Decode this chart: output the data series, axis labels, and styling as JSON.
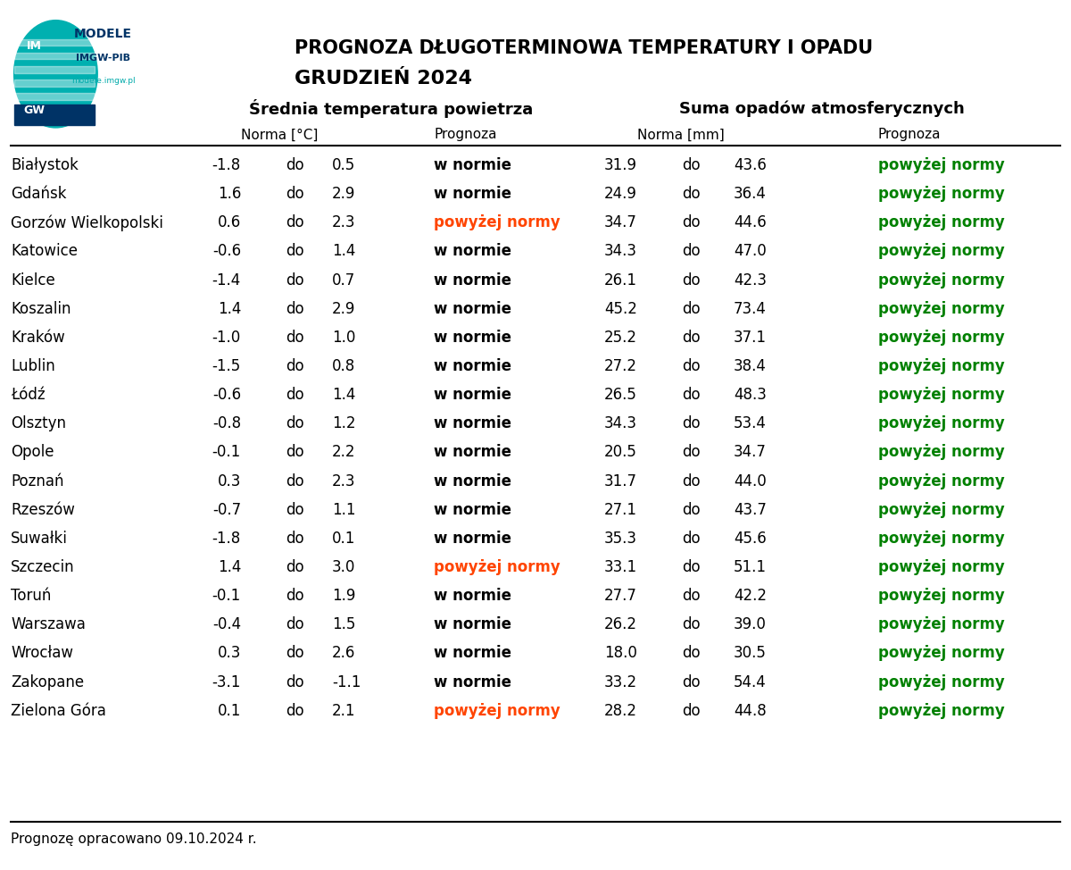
{
  "title1": "PROGNOZA DŁUGOTERMINOWA TEMPERATURY I OPADU",
  "title2": "GRUDZIEŃ 2024",
  "header1": "Średnia temperatura powietrza",
  "header2": "Suma opadów atmosferycznych",
  "subheader1": "Norma [°C]",
  "subheader2": "Prognoza",
  "subheader3": "Norma [mm]",
  "subheader4": "Prognoza",
  "footer": "Prognozę opracowano 09.10.2024 r.",
  "cities": [
    "Białystok",
    "Gdańsk",
    "Gorzów Wielkopolski",
    "Katowice",
    "Kielce",
    "Koszalin",
    "Kraków",
    "Lublin",
    "Łódź",
    "Olsztyn",
    "Opole",
    "Poznań",
    "Rzeszów",
    "Suwаłki",
    "Szczecin",
    "Toruń",
    "Warszawa",
    "Wrocław",
    "Zakopane",
    "Zielona Góra"
  ],
  "temp_norm_low": [
    -1.8,
    1.6,
    0.6,
    -0.6,
    -1.4,
    1.4,
    -1.0,
    -1.5,
    -0.6,
    -0.8,
    -0.1,
    0.3,
    -0.7,
    -1.8,
    1.4,
    -0.1,
    -0.4,
    0.3,
    -3.1,
    0.1
  ],
  "temp_norm_high": [
    0.5,
    2.9,
    2.3,
    1.4,
    0.7,
    2.9,
    1.0,
    0.8,
    1.4,
    1.2,
    2.2,
    2.3,
    1.1,
    0.1,
    3.0,
    1.9,
    1.5,
    2.6,
    -1.1,
    2.1
  ],
  "temp_forecast": [
    "w normie",
    "w normie",
    "powyżej normy",
    "w normie",
    "w normie",
    "w normie",
    "w normie",
    "w normie",
    "w normie",
    "w normie",
    "w normie",
    "w normie",
    "w normie",
    "w normie",
    "powyżej normy",
    "w normie",
    "w normie",
    "w normie",
    "w normie",
    "powyżej normy"
  ],
  "precip_norm_low": [
    31.9,
    24.9,
    34.7,
    34.3,
    26.1,
    45.2,
    25.2,
    27.2,
    26.5,
    34.3,
    20.5,
    31.7,
    27.1,
    35.3,
    33.1,
    27.7,
    26.2,
    18.0,
    33.2,
    28.2
  ],
  "precip_norm_high": [
    43.6,
    36.4,
    44.6,
    47.0,
    42.3,
    73.4,
    37.1,
    38.4,
    48.3,
    53.4,
    34.7,
    44.0,
    43.7,
    45.6,
    51.1,
    42.2,
    39.0,
    30.5,
    54.4,
    44.8
  ],
  "precip_forecast": [
    "powyżej normy",
    "powyżej normy",
    "powyżej normy",
    "powyżej normy",
    "powyżej normy",
    "powyżej normy",
    "powyżej normy",
    "powyżej normy",
    "powyżej normy",
    "powyżej normy",
    "powyżej normy",
    "powyżej normy",
    "powyżej normy",
    "powyżej normy",
    "powyżej normy",
    "powyżej normy",
    "powyżej normy",
    "powyżej normy",
    "powyżej normy",
    "powyżej normy"
  ],
  "color_w_normie": "#000000",
  "color_powyzej": "#008000",
  "color_powyzej_temp": "#ff4400",
  "bg_color": "#ffffff",
  "header_line_color": "#000000"
}
